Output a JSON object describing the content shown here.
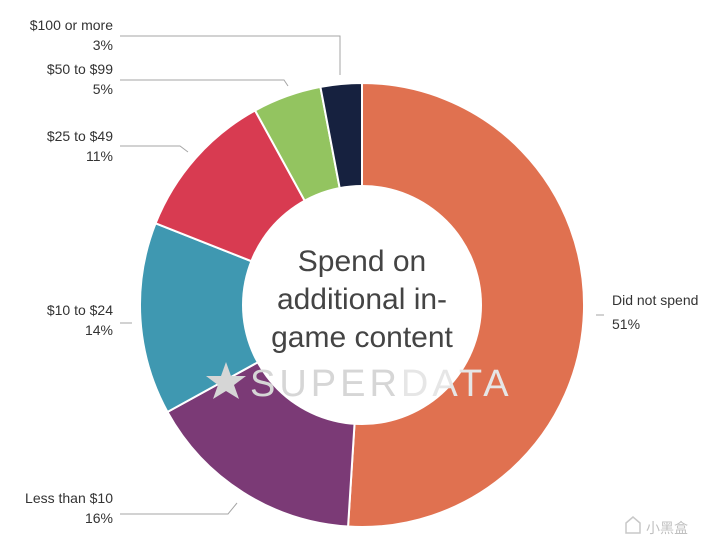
{
  "chart_data": {
    "type": "pie",
    "variant": "donut",
    "title": "Spend on additional in-game content",
    "title_lines": [
      "Spend on",
      "additional in-",
      "game content"
    ],
    "slices": [
      {
        "label": "Did not spend",
        "value": 51,
        "value_label": "51%",
        "color": "#e07150"
      },
      {
        "label": "Less than $10",
        "value": 16,
        "value_label": "16%",
        "color": "#7b3a76"
      },
      {
        "label": "$10 to $24",
        "value": 14,
        "value_label": "14%",
        "color": "#3f98b1"
      },
      {
        "label": "$25 to $49",
        "value": 11,
        "value_label": "11%",
        "color": "#d83b51"
      },
      {
        "label": "$50 to $99",
        "value": 5,
        "value_label": "5%",
        "color": "#93c460"
      },
      {
        "label": "$100 or more",
        "value": 3,
        "value_label": "3%",
        "color": "#16213f"
      }
    ],
    "start": "12 o'clock",
    "direction": "clockwise"
  },
  "watermark": {
    "text_dark": "SUPER",
    "text_light": "DATA",
    "icon": "star-icon"
  },
  "corner_mark": {
    "text": "小黑盒",
    "icon": "logo-icon"
  }
}
